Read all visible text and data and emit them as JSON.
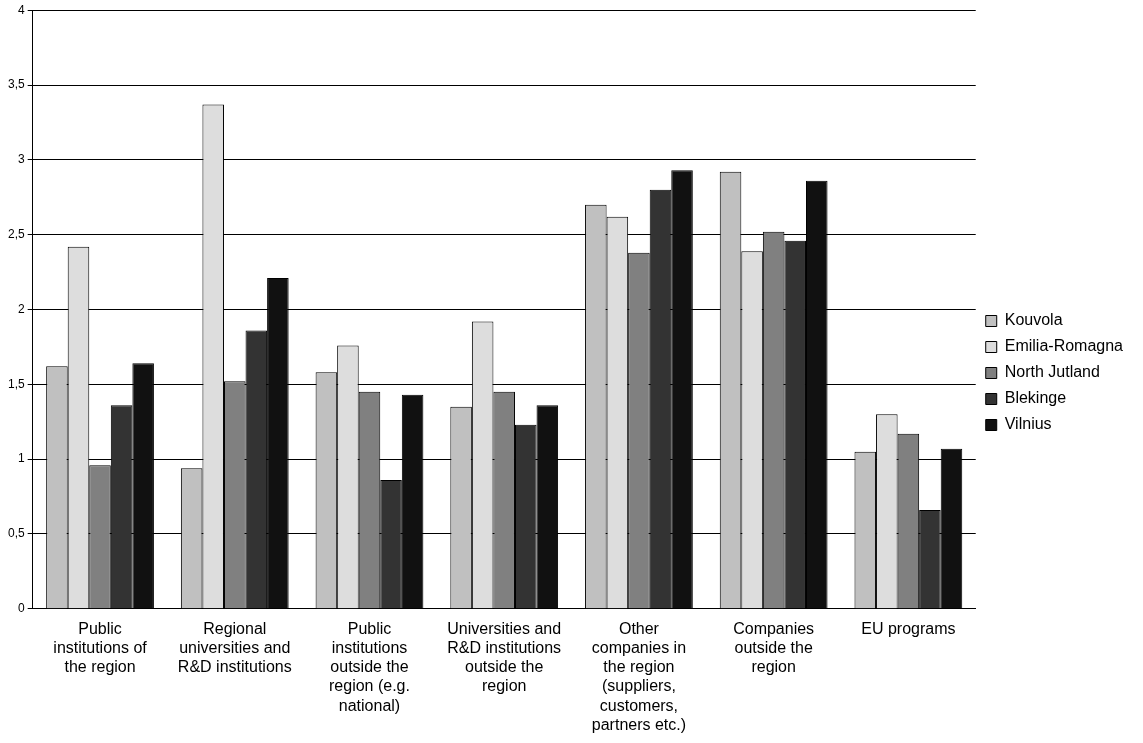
{
  "chart_data": {
    "type": "bar",
    "categories": [
      "Public institutions of the region",
      "Regional universities and R&D institutions",
      "Public institutions outside the region (e.g. national)",
      "Universities and R&D institutions outside the region",
      "Other companies in the region (suppliers, customers, partners etc.)",
      "Companies outside the region",
      "EU programs"
    ],
    "series": [
      {
        "name": "Kouvola",
        "color": "#c0c0c0",
        "values": [
          1.62,
          0.94,
          1.58,
          1.35,
          2.7,
          2.92,
          1.05
        ]
      },
      {
        "name": "Emilia-Romagna",
        "color": "#dddddd",
        "values": [
          2.42,
          3.37,
          1.76,
          1.92,
          2.62,
          2.39,
          1.3
        ]
      },
      {
        "name": "North Jutland",
        "color": "#808080",
        "values": [
          0.96,
          1.52,
          1.45,
          1.45,
          2.38,
          2.52,
          1.17
        ]
      },
      {
        "name": "Blekinge",
        "color": "#333333",
        "values": [
          1.36,
          1.86,
          0.86,
          1.23,
          2.8,
          2.46,
          0.66
        ]
      },
      {
        "name": "Vilnius",
        "color": "#111111",
        "values": [
          1.64,
          2.21,
          1.43,
          1.36,
          2.93,
          2.86,
          1.07
        ]
      }
    ],
    "ylim": [
      0,
      4
    ],
    "yticks": [
      0,
      {
        "value": 0.5,
        "label": "0,5"
      },
      1,
      {
        "value": 1.5,
        "label": "1,5"
      },
      2,
      {
        "value": 2.5,
        "label": "2,5"
      },
      3,
      {
        "value": 3.5,
        "label": "3,5"
      },
      4
    ],
    "grid": "y",
    "legend": "right"
  }
}
